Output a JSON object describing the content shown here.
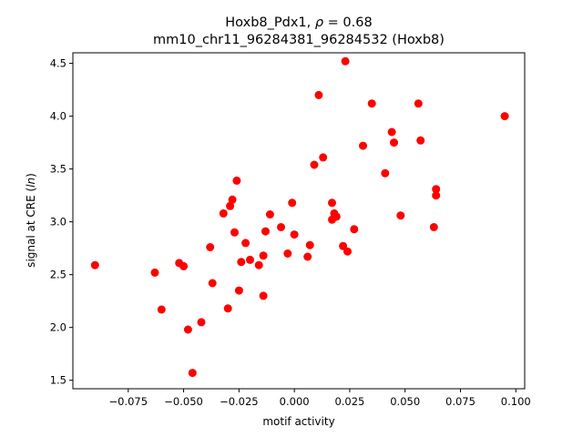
{
  "chart_data": {
    "type": "scatter",
    "title_line1_prefix": "Hoxb8_Pdx1, ",
    "title_line1_rho": "ρ",
    "title_line1_suffix": " = 0.68",
    "title_line2": "mm10_chr11_96284381_96284532 (Hoxb8)",
    "xlabel": "motif activity",
    "ylabel_prefix": "signal at CRE (",
    "ylabel_italic": "ln",
    "ylabel_suffix": ")",
    "xlim": [
      -0.1,
      0.104
    ],
    "ylim": [
      1.42,
      4.6
    ],
    "xticks": [
      -0.075,
      -0.05,
      -0.025,
      0.0,
      0.025,
      0.05,
      0.075,
      0.1
    ],
    "xtick_labels": [
      "−0.075",
      "−0.050",
      "−0.025",
      "0.000",
      "0.025",
      "0.050",
      "0.075",
      "0.100"
    ],
    "yticks": [
      1.5,
      2.0,
      2.5,
      3.0,
      3.5,
      4.0,
      4.5
    ],
    "ytick_labels": [
      "1.5",
      "2.0",
      "2.5",
      "3.0",
      "3.5",
      "4.0",
      "4.5"
    ],
    "marker_color": "#ff0000",
    "grid": false,
    "points": [
      {
        "x": -0.09,
        "y": 2.59
      },
      {
        "x": -0.063,
        "y": 2.52
      },
      {
        "x": -0.06,
        "y": 2.17
      },
      {
        "x": -0.052,
        "y": 2.61
      },
      {
        "x": -0.05,
        "y": 2.58
      },
      {
        "x": -0.048,
        "y": 1.98
      },
      {
        "x": -0.046,
        "y": 1.57
      },
      {
        "x": -0.042,
        "y": 2.05
      },
      {
        "x": -0.038,
        "y": 2.76
      },
      {
        "x": -0.037,
        "y": 2.42
      },
      {
        "x": -0.032,
        "y": 3.08
      },
      {
        "x": -0.029,
        "y": 3.15
      },
      {
        "x": -0.03,
        "y": 2.18
      },
      {
        "x": -0.028,
        "y": 3.21
      },
      {
        "x": -0.027,
        "y": 2.9
      },
      {
        "x": -0.026,
        "y": 3.39
      },
      {
        "x": -0.025,
        "y": 2.35
      },
      {
        "x": -0.024,
        "y": 2.62
      },
      {
        "x": -0.022,
        "y": 2.8
      },
      {
        "x": -0.02,
        "y": 2.64
      },
      {
        "x": -0.016,
        "y": 2.59
      },
      {
        "x": -0.014,
        "y": 2.68
      },
      {
        "x": -0.014,
        "y": 2.3
      },
      {
        "x": -0.013,
        "y": 2.91
      },
      {
        "x": -0.011,
        "y": 3.07
      },
      {
        "x": -0.006,
        "y": 2.95
      },
      {
        "x": -0.003,
        "y": 2.7
      },
      {
        "x": -0.001,
        "y": 3.18
      },
      {
        "x": -0.0,
        "y": 2.88
      },
      {
        "x": 0.006,
        "y": 2.67
      },
      {
        "x": 0.007,
        "y": 2.78
      },
      {
        "x": 0.009,
        "y": 3.54
      },
      {
        "x": 0.011,
        "y": 4.2
      },
      {
        "x": 0.013,
        "y": 3.61
      },
      {
        "x": 0.017,
        "y": 3.18
      },
      {
        "x": 0.017,
        "y": 3.02
      },
      {
        "x": 0.018,
        "y": 3.08
      },
      {
        "x": 0.019,
        "y": 3.05
      },
      {
        "x": 0.022,
        "y": 2.77
      },
      {
        "x": 0.023,
        "y": 4.52
      },
      {
        "x": 0.024,
        "y": 2.72
      },
      {
        "x": 0.027,
        "y": 2.93
      },
      {
        "x": 0.031,
        "y": 3.72
      },
      {
        "x": 0.035,
        "y": 4.12
      },
      {
        "x": 0.041,
        "y": 3.46
      },
      {
        "x": 0.044,
        "y": 3.85
      },
      {
        "x": 0.045,
        "y": 3.75
      },
      {
        "x": 0.048,
        "y": 3.06
      },
      {
        "x": 0.056,
        "y": 4.12
      },
      {
        "x": 0.057,
        "y": 3.77
      },
      {
        "x": 0.063,
        "y": 2.95
      },
      {
        "x": 0.064,
        "y": 3.25
      },
      {
        "x": 0.064,
        "y": 3.31
      },
      {
        "x": 0.095,
        "y": 4.0
      }
    ]
  }
}
